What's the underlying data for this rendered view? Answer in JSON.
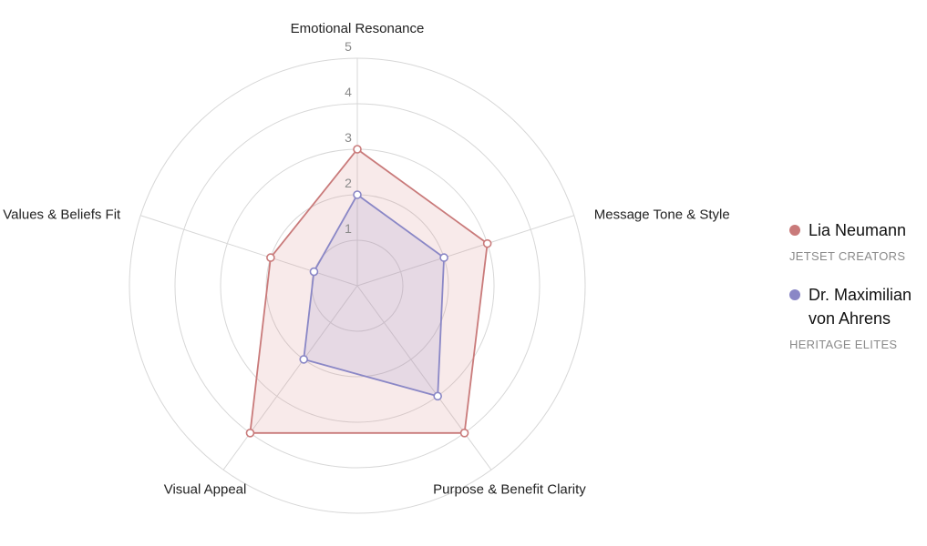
{
  "chart_data": {
    "type": "radar",
    "title": "",
    "axes": [
      "Emotional Resonance",
      "Message Tone & Style",
      "Purpose & Benefit Clarity",
      "Visual Appeal",
      "Values & Beliefs Fit"
    ],
    "range": [
      0,
      5
    ],
    "ticks": [
      1,
      2,
      3,
      4,
      5
    ],
    "grid": true,
    "legend_position": "right",
    "series": [
      {
        "name": "Lia Neumann",
        "group": "JETSET CREATORS",
        "color": "#c97a7a",
        "fill": "rgba(214, 141, 141, 0.18)",
        "values": [
          3,
          3,
          4,
          4,
          2
        ]
      },
      {
        "name": "Dr. Maximilian von Ahrens",
        "group": "HERITAGE ELITES",
        "color": "#8a87c6",
        "fill": "rgba(150, 146, 205, 0.18)",
        "values": [
          2,
          2,
          3,
          2,
          1
        ]
      }
    ]
  }
}
